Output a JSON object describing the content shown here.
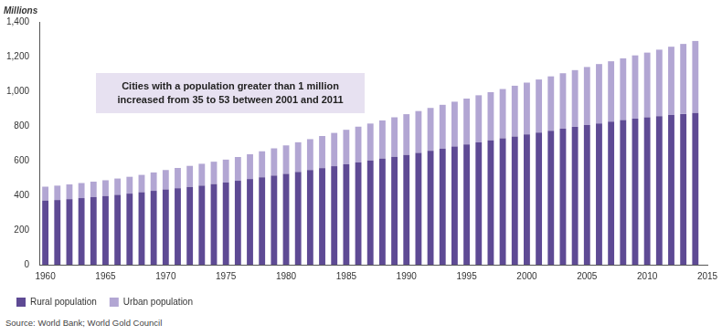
{
  "chart_data": {
    "type": "bar",
    "y_label": "Millions",
    "annotation": [
      "Cities with a population greater than 1 million",
      "increased from 35 to 53 between 2001 and 2011"
    ],
    "source": "Source: World Bank; World Gold Council",
    "stacked": true,
    "grid": false,
    "legend": "bottom-left",
    "x": [
      1960,
      1961,
      1962,
      1963,
      1964,
      1965,
      1966,
      1967,
      1968,
      1969,
      1970,
      1971,
      1972,
      1973,
      1974,
      1975,
      1976,
      1977,
      1978,
      1979,
      1980,
      1981,
      1982,
      1983,
      1984,
      1985,
      1986,
      1987,
      1988,
      1989,
      1990,
      1991,
      1992,
      1993,
      1994,
      1995,
      1996,
      1997,
      1998,
      1999,
      2000,
      2001,
      2002,
      2003,
      2004,
      2005,
      2006,
      2007,
      2008,
      2009,
      2010,
      2011,
      2012,
      2013,
      2014
    ],
    "xlim": [
      1959.5,
      2015
    ],
    "xticks": [
      1960,
      1965,
      1970,
      1975,
      1980,
      1985,
      1990,
      1995,
      2000,
      2005,
      2010,
      2015
    ],
    "ylim": [
      0,
      1400
    ],
    "yticks": [
      0,
      200,
      400,
      600,
      800,
      {
        "value": 1000,
        "label": "1,000"
      },
      {
        "value": 1200,
        "label": "1,200"
      },
      {
        "value": 1400,
        "label": "1,400"
      }
    ],
    "series": [
      {
        "name": "Rural population",
        "color": "#5e4a94",
        "values": [
          370,
          373,
          378,
          384,
          390,
          396,
          403,
          410,
          418,
          426,
          434,
          441,
          448,
          456,
          465,
          474,
          484,
          494,
          504,
          514,
          524,
          535,
          546,
          557,
          568,
          579,
          590,
          601,
          612,
          622,
          633,
          645,
          657,
          669,
          681,
          693,
          705,
          717,
          729,
          740,
          751,
          762,
          773,
          784,
          795,
          805,
          815,
          825,
          834,
          842,
          850,
          857,
          863,
          869,
          875
        ]
      },
      {
        "name": "Urban population",
        "color": "#b2a6d3",
        "values": [
          80,
          83,
          85,
          87,
          89,
          91,
          94,
          97,
          100,
          106,
          112,
          117,
          122,
          126,
          129,
          132,
          137,
          143,
          150,
          157,
          164,
          171,
          178,
          185,
          192,
          199,
          206,
          213,
          220,
          228,
          235,
          241,
          247,
          253,
          259,
          265,
          272,
          278,
          284,
          292,
          299,
          306,
          313,
          320,
          327,
          335,
          342,
          348,
          356,
          365,
          373,
          383,
          394,
          404,
          415
        ]
      }
    ]
  }
}
